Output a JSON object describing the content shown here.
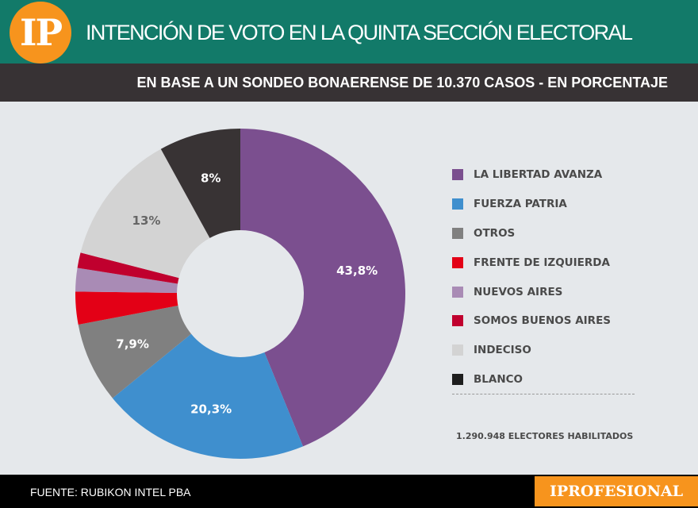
{
  "header": {
    "logo": "IP",
    "title": "INTENCIÓN DE VOTO EN LA QUINTA SECCIÓN ELECTORAL",
    "subtitle": "EN BASE A UN SONDEO BONAERENSE DE 10.370 CASOS - EN PORCENTAJE"
  },
  "chart_data": {
    "type": "pie",
    "donut": true,
    "categories": [
      "LA LIBERTAD AVANZA",
      "FUERZA PATRIA",
      "OTROS",
      "FRENTE DE IZQUIERDA",
      "NUEVOS AIRES",
      "SOMOS BUENOS AIRES",
      "INDECISO",
      "BLANCO"
    ],
    "values": [
      43.8,
      20.3,
      7.9,
      3.2,
      2.3,
      1.5,
      13,
      8
    ],
    "labels": [
      "43,8%",
      "20,3%",
      "7,9%",
      "",
      "",
      "",
      "13%",
      "8%"
    ],
    "colors": [
      "#7b4f8f",
      "#3f8fce",
      "#808080",
      "#e30016",
      "#a98bb5",
      "#c0002e",
      "#d3d3d3",
      "#383334"
    ],
    "label_colors": [
      "#ffffff",
      "#ffffff",
      "#ffffff",
      "",
      "",
      "",
      "#666666",
      "#ffffff"
    ],
    "legend_placement": "right"
  },
  "note": "1.290.948 ELECTORES HABILITADOS",
  "footer": {
    "source": "FUENTE: RUBIKON INTEL PBA",
    "brand": "IPROFESIONAL"
  }
}
